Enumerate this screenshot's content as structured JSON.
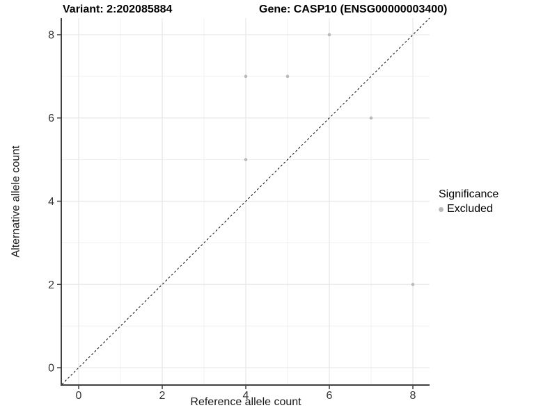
{
  "titles": {
    "variant": "Variant: 2:202085884",
    "gene": "Gene: CASP10 (ENSG00000003400)"
  },
  "legend": {
    "title": "Significance",
    "items": [
      {
        "label": "Excluded",
        "color": "#b9b9b9"
      }
    ]
  },
  "chart_data": {
    "type": "scatter",
    "title": "Variant: 2:202085884   Gene: CASP10 (ENSG00000003400)",
    "xlabel": "Reference allele count",
    "ylabel": "Alternative allele count",
    "xlim": [
      -0.4,
      8.4
    ],
    "ylim": [
      -0.4,
      8.4
    ],
    "x_ticks": [
      0,
      2,
      4,
      6,
      8
    ],
    "y_ticks": [
      0,
      2,
      4,
      6,
      8
    ],
    "x_minor": [
      1,
      3,
      5,
      7
    ],
    "y_minor": [
      1,
      3,
      5,
      7
    ],
    "grid": true,
    "legend_position": "right",
    "series": [
      {
        "name": "Excluded",
        "color": "#b9b9b9",
        "points": [
          [
            4,
            5
          ],
          [
            4,
            7
          ],
          [
            5,
            7
          ],
          [
            6,
            8
          ],
          [
            7,
            6
          ],
          [
            8,
            2
          ]
        ]
      }
    ],
    "reference_line": {
      "type": "identity",
      "from": [
        -0.4,
        -0.4
      ],
      "to": [
        8.4,
        8.4
      ],
      "style": "dashed",
      "color": "#000000"
    }
  },
  "colors": {
    "background": "#ffffff",
    "grid_major": "#e7e7e7",
    "grid_minor": "#f0f0f0",
    "axis_line": "#404040",
    "tick_label": "#333333",
    "point": "#b9b9b9"
  }
}
